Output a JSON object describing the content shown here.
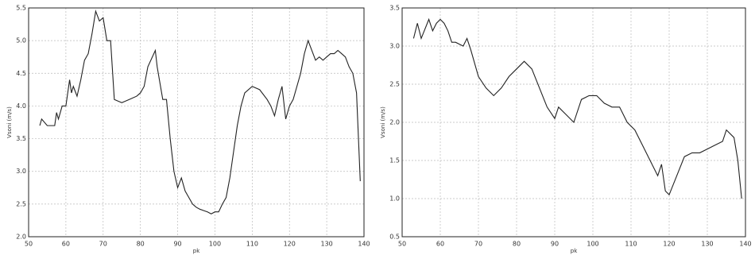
{
  "chart_data": [
    {
      "type": "line",
      "x_label": "pk",
      "y_label": "Vsoni (m/s)",
      "xlim": [
        50,
        140
      ],
      "xticks": [
        50,
        60,
        70,
        80,
        90,
        100,
        110,
        120,
        130,
        140
      ],
      "ylim": [
        2,
        5.5
      ],
      "yticks": [
        {
          "value": 2,
          "label": "2.0"
        },
        {
          "value": 2.5,
          "label": "2.5"
        },
        {
          "value": 3,
          "label": "3.0"
        },
        {
          "value": 3.5,
          "label": "3.5"
        },
        {
          "value": 4,
          "label": "4.0"
        },
        {
          "value": 4.5,
          "label": "4.5"
        },
        {
          "value": 5,
          "label": "5.0"
        },
        {
          "value": 5.5,
          "label": "5.5"
        }
      ],
      "grid": true,
      "series": [
        {
          "color": "#222222",
          "x": [
            53,
            53.5,
            55,
            57,
            57.5,
            58,
            59,
            60,
            61,
            61.5,
            62,
            63,
            64,
            65,
            66,
            67,
            68,
            69,
            70,
            71,
            72,
            73,
            75,
            77,
            79,
            80,
            81,
            82,
            84,
            84.5,
            86,
            87,
            88,
            89,
            90,
            91,
            92,
            93,
            94,
            95,
            96,
            97,
            98,
            99,
            100,
            101,
            102,
            103,
            104,
            105,
            106,
            107,
            108,
            110,
            112,
            114,
            115,
            116,
            117,
            118,
            119,
            120,
            121,
            122,
            123,
            124,
            125,
            126,
            127,
            128,
            129,
            130,
            131,
            132,
            133,
            134,
            135,
            136,
            137,
            138,
            139
          ],
          "values": [
            3.7,
            3.8,
            3.7,
            3.7,
            3.9,
            3.8,
            4.0,
            4.0,
            4.4,
            4.2,
            4.3,
            4.15,
            4.4,
            4.7,
            4.8,
            5.1,
            5.45,
            5.3,
            5.35,
            5.0,
            5.0,
            4.1,
            4.05,
            4.1,
            4.15,
            4.2,
            4.3,
            4.6,
            4.85,
            4.6,
            4.1,
            4.1,
            3.5,
            3.0,
            2.75,
            2.9,
            2.7,
            2.6,
            2.5,
            2.45,
            2.42,
            2.4,
            2.38,
            2.35,
            2.38,
            2.38,
            2.5,
            2.6,
            2.9,
            3.3,
            3.7,
            4.0,
            4.2,
            4.3,
            4.25,
            4.1,
            4.0,
            3.85,
            4.1,
            4.3,
            3.8,
            4.0,
            4.1,
            4.3,
            4.5,
            4.8,
            5.0,
            4.85,
            4.7,
            4.75,
            4.7,
            4.75,
            4.8,
            4.8,
            4.85,
            4.8,
            4.75,
            4.6,
            4.5,
            4.2,
            2.85
          ]
        }
      ]
    },
    {
      "type": "line",
      "x_label": "pk",
      "y_label": "Vsoni (m/s)",
      "xlim": [
        50,
        140
      ],
      "xticks": [
        50,
        60,
        70,
        80,
        90,
        100,
        110,
        120,
        130,
        140
      ],
      "ylim": [
        0.5,
        3.5
      ],
      "yticks": [
        0.5,
        {
          "value": 1,
          "label": "1.0"
        },
        1.5,
        {
          "value": 2,
          "label": "2.0"
        },
        2.5,
        {
          "value": 3,
          "label": "3.0"
        },
        3.5
      ],
      "grid": true,
      "series": [
        {
          "color": "#222222",
          "x": [
            53,
            54,
            55,
            57,
            58,
            59,
            60,
            61,
            62,
            63,
            64,
            66,
            67,
            68,
            70,
            72,
            74,
            76,
            78,
            80,
            82,
            84,
            86,
            88,
            90,
            91,
            93,
            95,
            97,
            99,
            101,
            103,
            105,
            107,
            109,
            111,
            113,
            115,
            117,
            118,
            119,
            120,
            122,
            124,
            126,
            128,
            130,
            132,
            134,
            135,
            137,
            138,
            139
          ],
          "values": [
            3.1,
            3.3,
            3.1,
            3.35,
            3.2,
            3.3,
            3.35,
            3.3,
            3.2,
            3.05,
            3.05,
            3.0,
            3.1,
            2.95,
            2.6,
            2.45,
            2.35,
            2.45,
            2.6,
            2.7,
            2.8,
            2.7,
            2.45,
            2.2,
            2.05,
            2.2,
            2.1,
            2.0,
            2.3,
            2.35,
            2.35,
            2.25,
            2.2,
            2.2,
            2.0,
            1.9,
            1.7,
            1.5,
            1.3,
            1.45,
            1.1,
            1.05,
            1.3,
            1.55,
            1.6,
            1.6,
            1.65,
            1.7,
            1.75,
            1.9,
            1.8,
            1.5,
            1.0
          ]
        }
      ]
    }
  ]
}
